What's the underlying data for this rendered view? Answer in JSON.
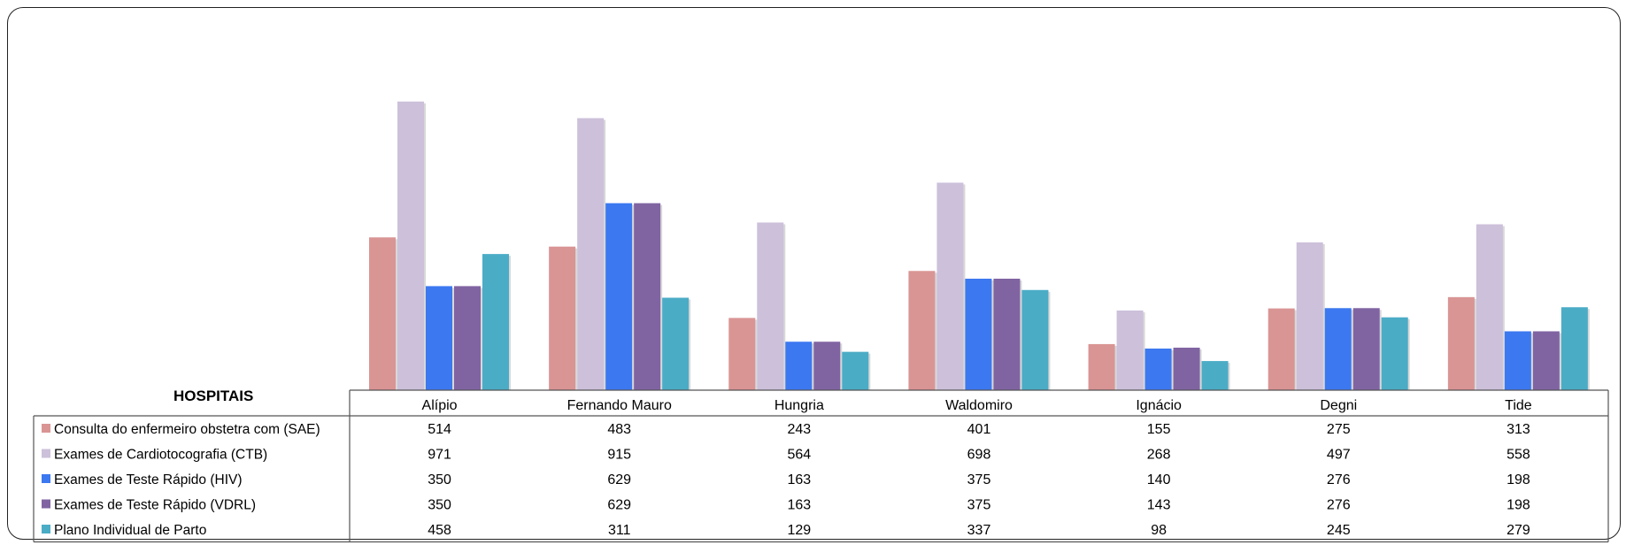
{
  "chart_data": {
    "type": "bar",
    "table_title": "HOSPITAIS",
    "categories": [
      "Alípio",
      "Fernando Mauro",
      "Hungria",
      "Waldomiro",
      "Ignácio",
      "Degni",
      "Tide"
    ],
    "series": [
      {
        "name": "Consulta do enfermeiro obstetra com (SAE)",
        "color": "#d99594",
        "values": [
          514,
          483,
          243,
          401,
          155,
          275,
          313
        ]
      },
      {
        "name": "Exames de Cardiotocografia (CTB)",
        "color": "#ccc0da",
        "values": [
          971,
          915,
          564,
          698,
          268,
          497,
          558
        ]
      },
      {
        "name": "Exames de Teste Rápido (HIV)",
        "color": "#3c78f0",
        "values": [
          350,
          629,
          163,
          375,
          140,
          276,
          198
        ]
      },
      {
        "name": "Exames de Teste Rápido (VDRL)",
        "color": "#8064a2",
        "values": [
          350,
          629,
          163,
          375,
          143,
          276,
          198
        ]
      },
      {
        "name": "Plano Individual de Parto",
        "color": "#4bacc6",
        "values": [
          458,
          311,
          129,
          337,
          98,
          245,
          279
        ]
      }
    ],
    "ylim": [
      0,
      1000
    ],
    "grid": false,
    "legend": "data-table"
  }
}
